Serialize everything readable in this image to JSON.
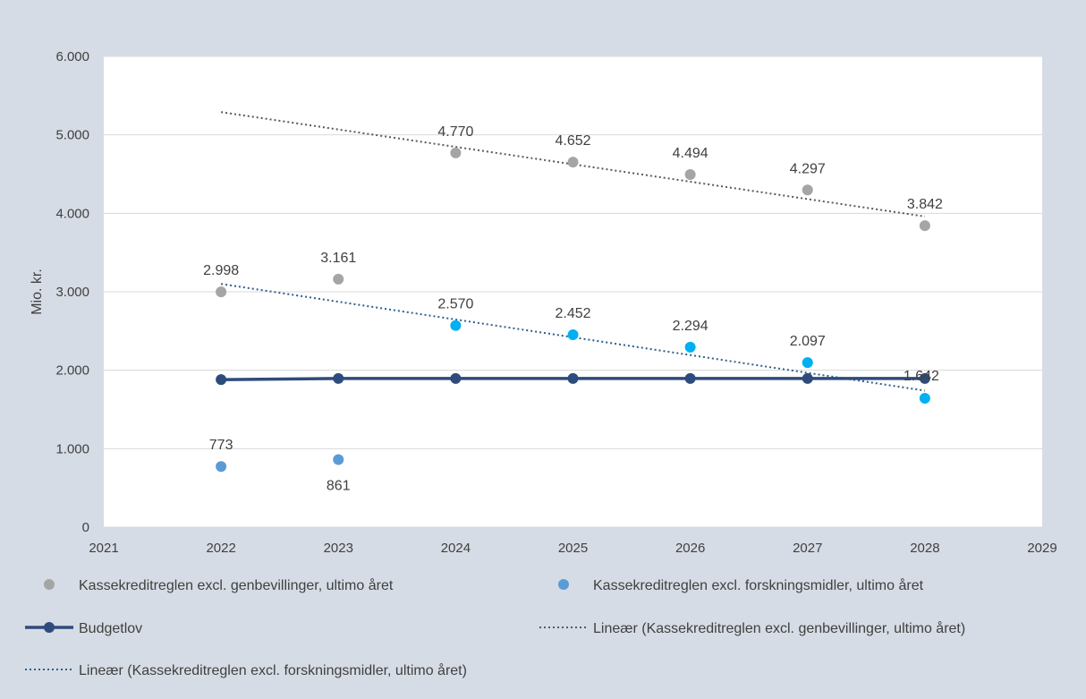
{
  "chart_data": {
    "type": "scatter",
    "title": "",
    "xlabel": "",
    "ylabel": "Mio. kr.",
    "xlim": [
      2021,
      2029
    ],
    "ylim": [
      0,
      6000
    ],
    "x_ticks": [
      2021,
      2022,
      2023,
      2024,
      2025,
      2026,
      2027,
      2028,
      2029
    ],
    "y_ticks": [
      0,
      1000,
      2000,
      3000,
      4000,
      5000,
      6000
    ],
    "y_tick_labels": [
      "0",
      "1.000",
      "2.000",
      "3.000",
      "4.000",
      "5.000",
      "6.000"
    ],
    "grid": "horizontal",
    "legend_position": "bottom",
    "series": [
      {
        "name": "Kassekreditreglen excl. genbevillinger, ultimo året",
        "kind": "scatter",
        "color": "#a5a5a5",
        "points": [
          {
            "x": 2022,
            "y": 2998,
            "label": "2.998"
          },
          {
            "x": 2023,
            "y": 3161,
            "label": "3.161"
          },
          {
            "x": 2024,
            "y": 4770,
            "label": "4.770"
          },
          {
            "x": 2025,
            "y": 4652,
            "label": "4.652"
          },
          {
            "x": 2026,
            "y": 4494,
            "label": "4.494"
          },
          {
            "x": 2027,
            "y": 4297,
            "label": "4.297"
          },
          {
            "x": 2028,
            "y": 3842,
            "label": "3.842"
          }
        ]
      },
      {
        "name": "Kassekreditreglen excl. forskningsmidler, ultimo året",
        "kind": "scatter",
        "color": "#5b9bd5",
        "color_forecast": "#00b0f0",
        "points": [
          {
            "x": 2022,
            "y": 773,
            "label": "773"
          },
          {
            "x": 2023,
            "y": 861,
            "label": "861"
          },
          {
            "x": 2024,
            "y": 2570,
            "label": "2.570"
          },
          {
            "x": 2025,
            "y": 2452,
            "label": "2.452"
          },
          {
            "x": 2026,
            "y": 2294,
            "label": "2.294"
          },
          {
            "x": 2027,
            "y": 2097,
            "label": "2.097"
          },
          {
            "x": 2028,
            "y": 1642,
            "label": "1.642"
          }
        ]
      },
      {
        "name": "Budgetlov",
        "kind": "line",
        "color": "#2f4b7c",
        "points": [
          {
            "x": 2022,
            "y": 1880
          },
          {
            "x": 2023,
            "y": 1895
          },
          {
            "x": 2024,
            "y": 1895
          },
          {
            "x": 2025,
            "y": 1895
          },
          {
            "x": 2026,
            "y": 1895
          },
          {
            "x": 2027,
            "y": 1895
          },
          {
            "x": 2028,
            "y": 1895
          }
        ]
      },
      {
        "name": "Lineær (Kassekreditreglen excl. genbevillinger, ultimo året)",
        "kind": "trendline",
        "color": "#595959",
        "points": [
          {
            "x": 2022,
            "y": 5290
          },
          {
            "x": 2028,
            "y": 3960
          }
        ]
      },
      {
        "name": "Lineær (Kassekreditreglen excl. forskningsmidler, ultimo året)",
        "kind": "trendline",
        "color": "#2e5f8a",
        "points": [
          {
            "x": 2022,
            "y": 3100
          },
          {
            "x": 2028,
            "y": 1740
          }
        ]
      }
    ]
  }
}
